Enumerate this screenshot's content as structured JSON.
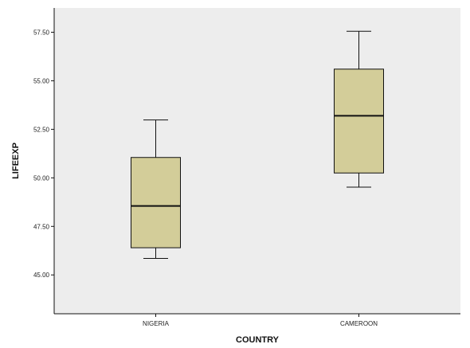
{
  "chart_data": {
    "type": "boxplot",
    "title": "",
    "xlabel": "COUNTRY",
    "ylabel": "LIFEEXP",
    "categories": [
      "NIGERIA",
      "CAMEROON"
    ],
    "boxes": [
      {
        "category": "NIGERIA",
        "min": 45.85,
        "q1": 46.4,
        "median": 48.55,
        "q3": 51.05,
        "max": 52.98
      },
      {
        "category": "CAMEROON",
        "min": 49.52,
        "q1": 50.25,
        "median": 53.2,
        "q3": 55.6,
        "max": 57.55
      }
    ],
    "ylim": [
      43.0,
      58.75
    ],
    "yticks": [
      "45.00",
      "47.50",
      "50.00",
      "52.50",
      "55.00",
      "57.50"
    ],
    "grid": false,
    "legend": "none",
    "colors": {
      "plot_background": "#ededed",
      "box_fill": "#d3cd99",
      "line": "#111111"
    }
  }
}
